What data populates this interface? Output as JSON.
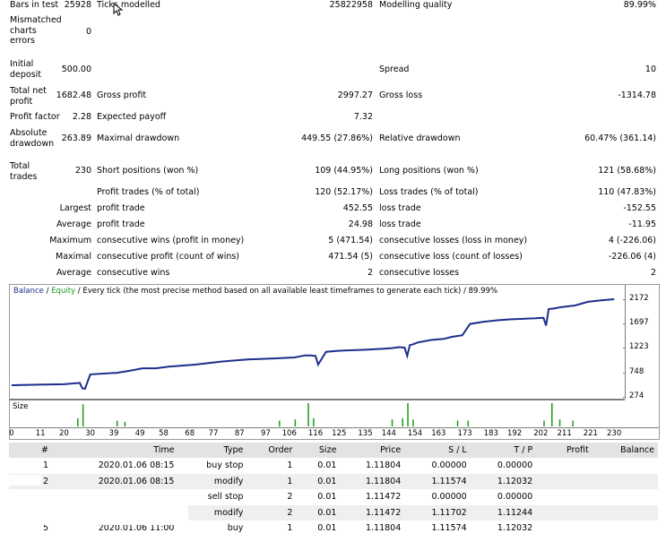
{
  "summary": {
    "bars_in_test_label": "Bars in test",
    "bars_in_test": "25928",
    "ticks_modelled_label": "Ticks modelled",
    "ticks_modelled": "25822958",
    "modelling_quality_label": "Modelling quality",
    "modelling_quality": "89.99%",
    "mismatched_label": "Mismatched charts errors",
    "mismatched": "0",
    "initial_deposit_label": "Initial deposit",
    "initial_deposit": "500.00",
    "spread_label": "Spread",
    "spread": "10",
    "total_net_profit_label": "Total net profit",
    "total_net_profit": "1682.48",
    "gross_profit_label": "Gross profit",
    "gross_profit": "2997.27",
    "gross_loss_label": "Gross loss",
    "gross_loss": "-1314.78",
    "profit_factor_label": "Profit factor",
    "profit_factor": "2.28",
    "expected_payoff_label": "Expected payoff",
    "expected_payoff": "7.32",
    "absolute_drawdown_label": "Absolute drawdown",
    "absolute_drawdown": "263.89",
    "maximal_drawdown_label": "Maximal drawdown",
    "maximal_drawdown": "449.55 (27.86%)",
    "relative_drawdown_label": "Relative drawdown",
    "relative_drawdown": "60.47% (361.14)",
    "total_trades_label": "Total trades",
    "total_trades": "230",
    "short_positions_label": "Short positions (won %)",
    "short_positions": "109 (44.95%)",
    "long_positions_label": "Long positions (won %)",
    "long_positions": "121 (58.68%)",
    "profit_trades_label": "Profit trades (% of total)",
    "profit_trades": "120 (52.17%)",
    "loss_trades_label": "Loss trades (% of total)",
    "loss_trades": "110 (47.83%)",
    "largest_label": "Largest",
    "average_label": "Average",
    "maximum_label": "Maximum",
    "maximal_label": "Maximal",
    "average2_label": "Average",
    "largest_profit_label": "profit trade",
    "largest_profit": "452.55",
    "largest_loss_label": "loss trade",
    "largest_loss": "-152.55",
    "average_profit_label": "profit trade",
    "average_profit": "24.98",
    "average_loss_label": "loss trade",
    "average_loss": "-11.95",
    "max_cons_wins_label": "consecutive wins (profit in money)",
    "max_cons_wins": "5 (471.54)",
    "max_cons_losses_label": "consecutive losses (loss in money)",
    "max_cons_losses": "4 (-226.06)",
    "maximal_cons_profit_label": "consecutive profit (count of wins)",
    "maximal_cons_profit": "471.54 (5)",
    "maximal_cons_loss_label": "consecutive loss (count of losses)",
    "maximal_cons_loss": "-226.06 (4)",
    "avg_cons_wins_label": "consecutive wins",
    "avg_cons_wins": "2",
    "avg_cons_losses_label": "consecutive losses",
    "avg_cons_losses": "2"
  },
  "chart": {
    "caption_balance": "Balance",
    "caption_sep": " / ",
    "caption_equity": "Equity",
    "caption_rest": " / Every tick (the most precise method based on all available least timeframes to generate each tick) / 89.99%",
    "size_label": "Size",
    "colors": {
      "balance": "#1d2d8c",
      "equity": "#1a9a1a",
      "size_bars": "#1a9a1a",
      "axis": "#7d7d7d"
    }
  },
  "chart_data": {
    "type": "line",
    "title": "",
    "ylabel": "",
    "xlabel": "",
    "y_ticks": [
      274,
      748,
      1223,
      1697,
      2172
    ],
    "x_ticks": [
      0,
      11,
      20,
      30,
      39,
      49,
      58,
      68,
      77,
      87,
      97,
      106,
      116,
      125,
      135,
      144,
      154,
      163,
      173,
      183,
      192,
      202,
      211,
      221,
      230
    ],
    "ylim": [
      274,
      2380
    ],
    "xlim": [
      0,
      232
    ],
    "series": [
      {
        "x": [
          0,
          10,
          20,
          26,
          27,
          28,
          30,
          40,
          45,
          50,
          55,
          60,
          70,
          80,
          90,
          100,
          108,
          110,
          112,
          114,
          116,
          117,
          120,
          125,
          135,
          142,
          145,
          148,
          150,
          151,
          152,
          153,
          155,
          160,
          165,
          168,
          172,
          175,
          180,
          185,
          190,
          195,
          200,
          203,
          204,
          205,
          207,
          210,
          215,
          220,
          225,
          230
        ],
        "values": [
          500,
          510,
          520,
          545,
          440,
          430,
          710,
          740,
          780,
          830,
          830,
          860,
          900,
          960,
          1000,
          1020,
          1040,
          1060,
          1080,
          1080,
          1070,
          900,
          1150,
          1170,
          1190,
          1210,
          1220,
          1240,
          1230,
          1070,
          1280,
          1290,
          1330,
          1380,
          1400,
          1440,
          1470,
          1690,
          1730,
          1760,
          1780,
          1790,
          1800,
          1810,
          1660,
          1980,
          1990,
          2020,
          2050,
          2120,
          2150,
          2172
        ]
      }
    ],
    "size_bars": [
      {
        "x": 27,
        "v": 0.95
      },
      {
        "x": 25,
        "v": 0.35
      },
      {
        "x": 40,
        "v": 0.25
      },
      {
        "x": 43,
        "v": 0.2
      },
      {
        "x": 102,
        "v": 0.25
      },
      {
        "x": 108,
        "v": 0.3
      },
      {
        "x": 113,
        "v": 1.0
      },
      {
        "x": 115,
        "v": 0.35
      },
      {
        "x": 145,
        "v": 0.3
      },
      {
        "x": 149,
        "v": 0.35
      },
      {
        "x": 151,
        "v": 1.0
      },
      {
        "x": 153,
        "v": 0.3
      },
      {
        "x": 170,
        "v": 0.25
      },
      {
        "x": 174,
        "v": 0.25
      },
      {
        "x": 203,
        "v": 0.25
      },
      {
        "x": 206,
        "v": 1.0
      },
      {
        "x": 209,
        "v": 0.3
      },
      {
        "x": 214,
        "v": 0.25
      }
    ]
  },
  "orders": {
    "headers": [
      "#",
      "Time",
      "Type",
      "Order",
      "Size",
      "Price",
      "S / L",
      "T / P",
      "Profit",
      "Balance"
    ],
    "rows": [
      [
        "1",
        "2020.01.06 08:15",
        "buy stop",
        "1",
        "0.01",
        "1.11804",
        "0.00000",
        "0.00000",
        "",
        ""
      ],
      [
        "2",
        "2020.01.06 08:15",
        "modify",
        "1",
        "0.01",
        "1.11804",
        "1.11574",
        "1.12032",
        "",
        ""
      ],
      [
        "",
        "",
        "sell stop",
        "2",
        "0.01",
        "1.11472",
        "0.00000",
        "0.00000",
        "",
        ""
      ],
      [
        "",
        "",
        "modify",
        "2",
        "0.01",
        "1.11472",
        "1.11702",
        "1.11244",
        "",
        ""
      ],
      [
        "5",
        "2020.01.06 11:00",
        "buy",
        "1",
        "0.01",
        "1.11804",
        "1.11574",
        "1.12032",
        "",
        ""
      ]
    ]
  }
}
